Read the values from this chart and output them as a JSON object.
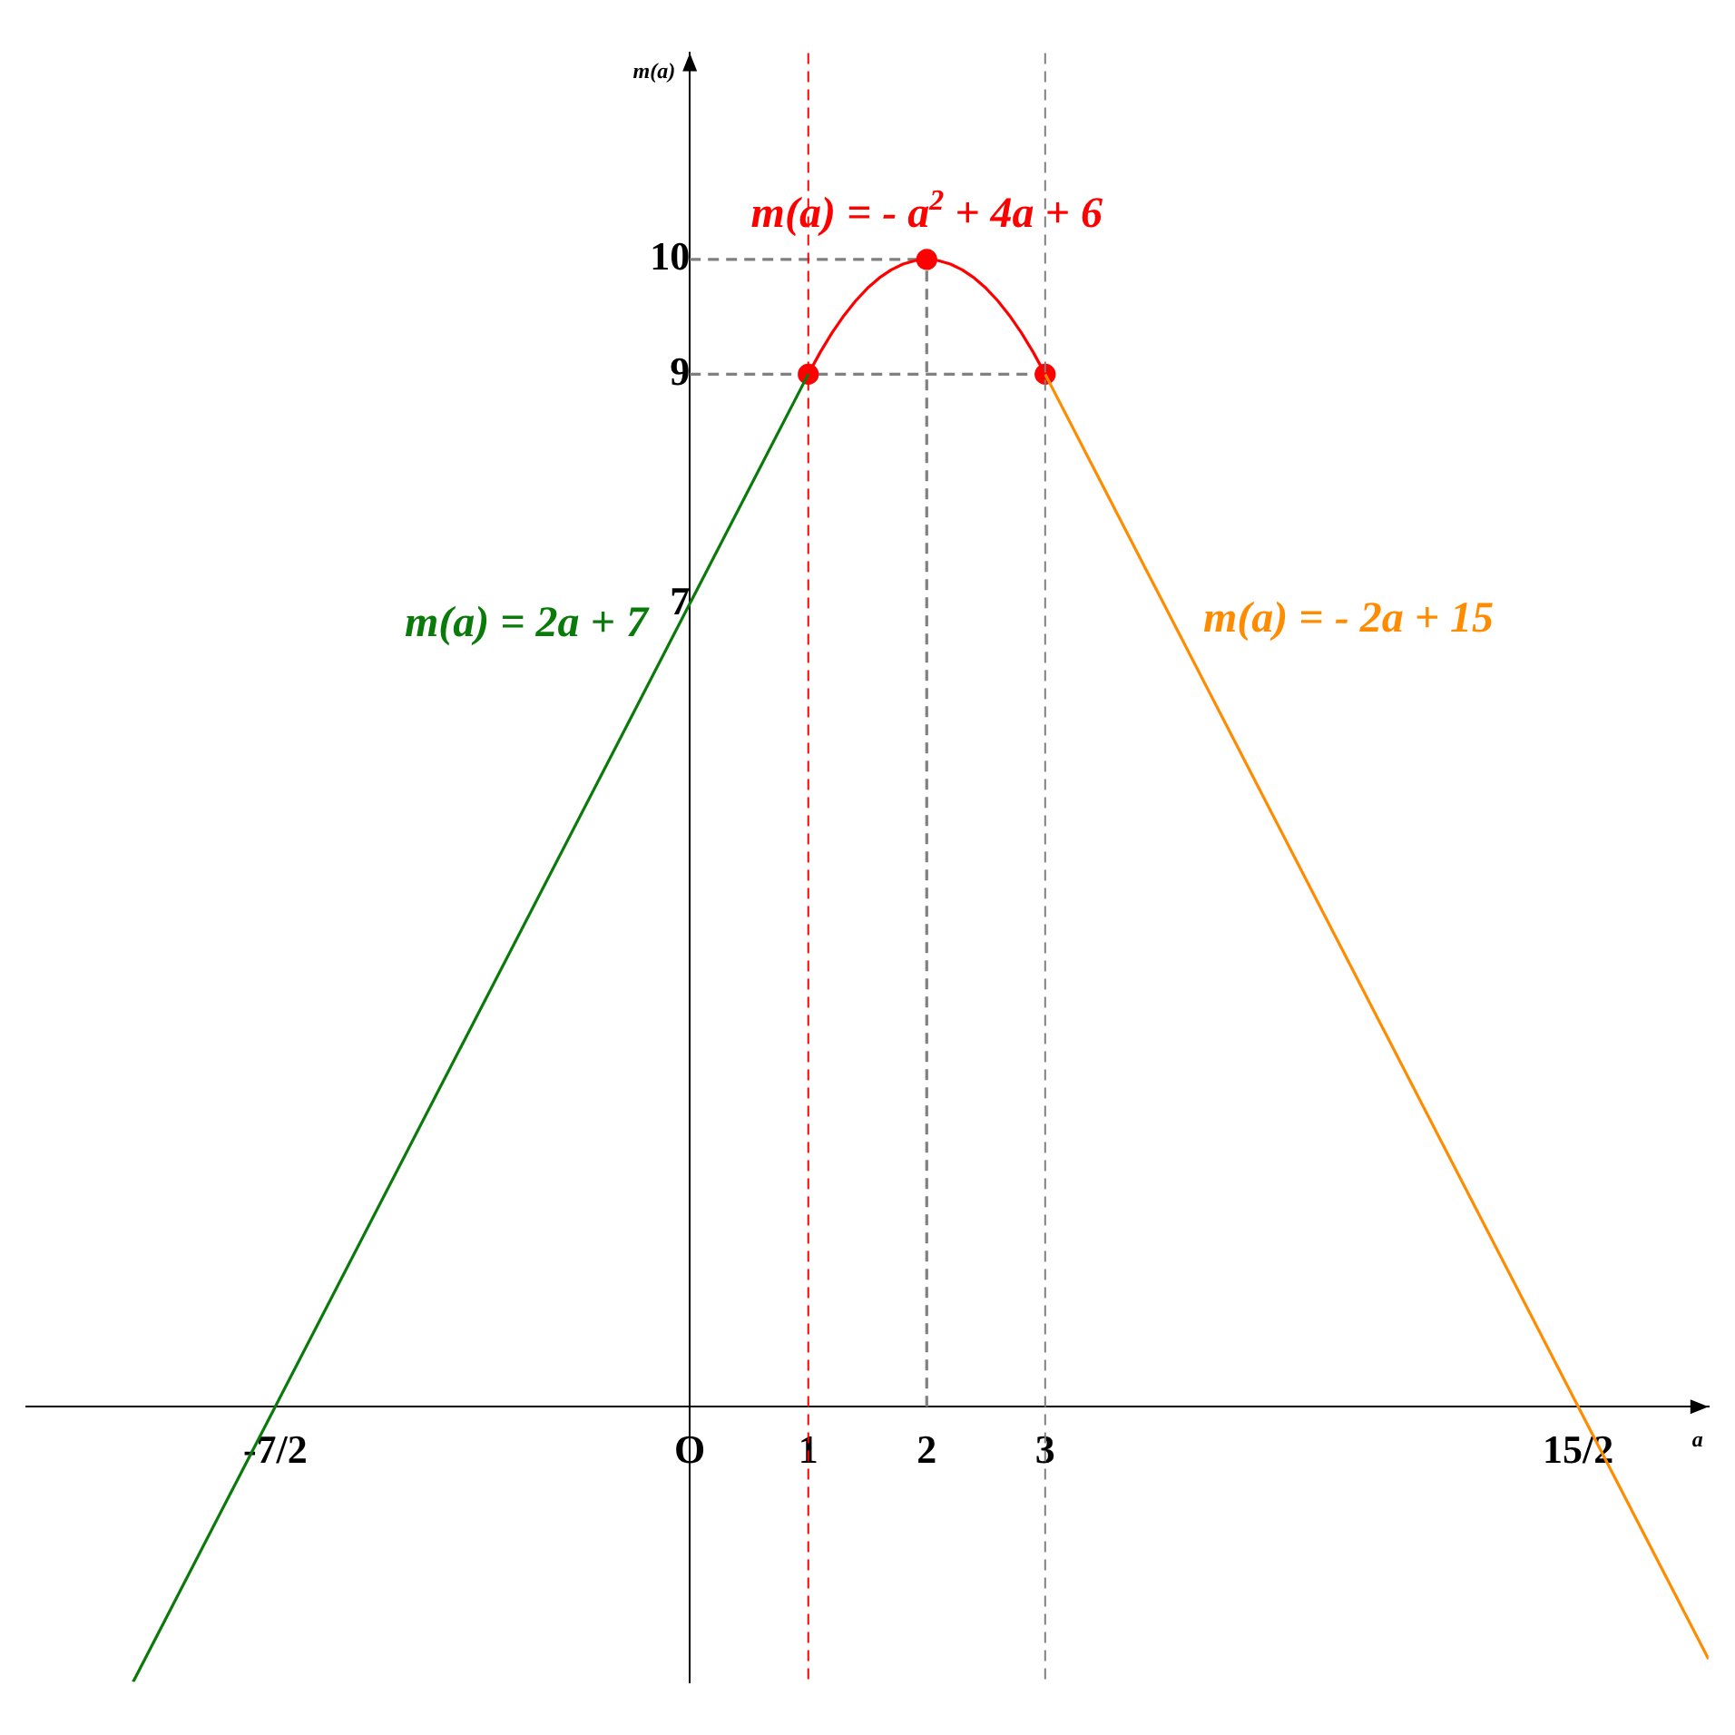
{
  "chart_data": {
    "type": "line",
    "xlabel": "a",
    "ylabel": "m(a)",
    "grid": false,
    "legend": false,
    "xlim": [
      -5.6,
      8.6
    ],
    "ylim": [
      -2.4,
      11.8
    ],
    "xticks": [
      {
        "value": -3.5,
        "label": "-7/2"
      },
      {
        "value": 0,
        "label": "O"
      },
      1,
      2,
      3,
      {
        "value": 7.5,
        "label": "15/2"
      }
    ],
    "yticks": [
      7,
      9,
      10
    ],
    "ref_lines": [
      {
        "axis": "x",
        "value": 1,
        "color": "#ff0000",
        "line_style": "dashed"
      },
      {
        "axis": "x",
        "value": 3,
        "color": "#808080",
        "line_style": "dashed"
      }
    ],
    "series": [
      {
        "name": "m(a) = 2a + 7",
        "color": "#0a7a0a",
        "x": [
          -4.7,
          1
        ],
        "values": [
          -2.4,
          9
        ]
      },
      {
        "name": "m(a) = - a$^{2}$ + 4a + 6",
        "color": "#ff0000",
        "x": [
          1,
          1.1,
          1.2,
          1.3,
          1.4,
          1.5,
          1.6,
          1.7,
          1.8,
          1.9,
          2,
          2.1,
          2.2,
          2.3,
          2.4,
          2.5,
          2.6,
          2.7,
          2.8,
          2.9,
          3
        ],
        "values": [
          9,
          9.19,
          9.36,
          9.51,
          9.64,
          9.75,
          9.84,
          9.91,
          9.96,
          9.99,
          10,
          9.99,
          9.96,
          9.91,
          9.84,
          9.75,
          9.64,
          9.51,
          9.36,
          9.19,
          9
        ]
      },
      {
        "name": "m(a) = - 2a + 15",
        "color": "#ff8c00",
        "x": [
          3,
          8.6
        ],
        "values": [
          9,
          -2.2
        ]
      },
      {
        "type": "scatter",
        "color": "#ff0000",
        "marker": "circle",
        "x": [
          1,
          2,
          3
        ],
        "values": [
          9,
          10,
          9
        ]
      },
      {
        "color": "#808080",
        "line_style": "dashed",
        "x": [
          0,
          2
        ],
        "values": [
          10,
          10
        ]
      },
      {
        "color": "#808080",
        "line_style": "dashed",
        "x": [
          0,
          3
        ],
        "values": [
          9,
          9
        ]
      },
      {
        "color": "#808080",
        "line_style": "dashed",
        "x": [
          2,
          2
        ],
        "values": [
          0,
          10
        ]
      }
    ]
  }
}
